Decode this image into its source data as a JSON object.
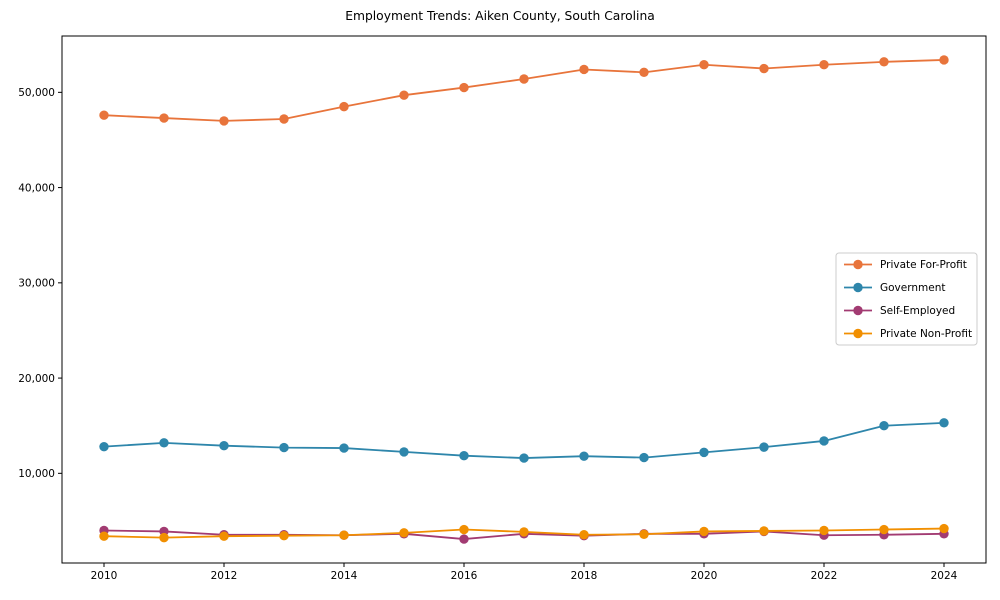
{
  "figure": {
    "title": "Employment Trends: Aiken County, South Carolina"
  },
  "chart_data": {
    "type": "line",
    "title": "Employment Trends: Aiken County, South Carolina",
    "xlabel": "",
    "ylabel": "",
    "x": [
      2010,
      2011,
      2012,
      2013,
      2014,
      2015,
      2016,
      2017,
      2018,
      2019,
      2020,
      2021,
      2022,
      2023,
      2024
    ],
    "series": [
      {
        "name": "Private For-Profit",
        "color": "#E8743B",
        "values": [
          47600,
          47300,
          47000,
          47200,
          48500,
          49700,
          50500,
          51400,
          52400,
          52100,
          52900,
          52500,
          52900,
          53200,
          53400
        ]
      },
      {
        "name": "Government",
        "color": "#2E86AB",
        "values": [
          12800,
          13200,
          12900,
          12700,
          12650,
          12250,
          11850,
          11600,
          11800,
          11650,
          12200,
          12750,
          13400,
          15000,
          15300
        ]
      },
      {
        "name": "Self-Employed",
        "color": "#A23B72",
        "values": [
          4000,
          3900,
          3550,
          3550,
          3500,
          3650,
          3100,
          3650,
          3450,
          3650,
          3650,
          3900,
          3500,
          3550,
          3650
        ]
      },
      {
        "name": "Private Non-Profit",
        "color": "#F18F01",
        "values": [
          3400,
          3250,
          3400,
          3450,
          3500,
          3750,
          4100,
          3850,
          3550,
          3600,
          3900,
          3950,
          4000,
          4100,
          4200
        ]
      }
    ],
    "xticks": [
      2010,
      2012,
      2014,
      2016,
      2018,
      2020,
      2022,
      2024
    ],
    "xtick_labels": [
      "2010",
      "2012",
      "2014",
      "2016",
      "2018",
      "2020",
      "2022",
      "2024"
    ],
    "yticks": [
      10000,
      20000,
      30000,
      40000,
      50000
    ],
    "ytick_labels": [
      "10,000",
      "20,000",
      "30,000",
      "40,000",
      "50,000"
    ],
    "xlim": [
      2009.3,
      2024.7
    ],
    "ylim": [
      585,
      55915
    ],
    "grid": false,
    "legend_position": "center right",
    "marker": "circle",
    "axis_color": "#000000",
    "legend_border_color": "#cccccc"
  }
}
